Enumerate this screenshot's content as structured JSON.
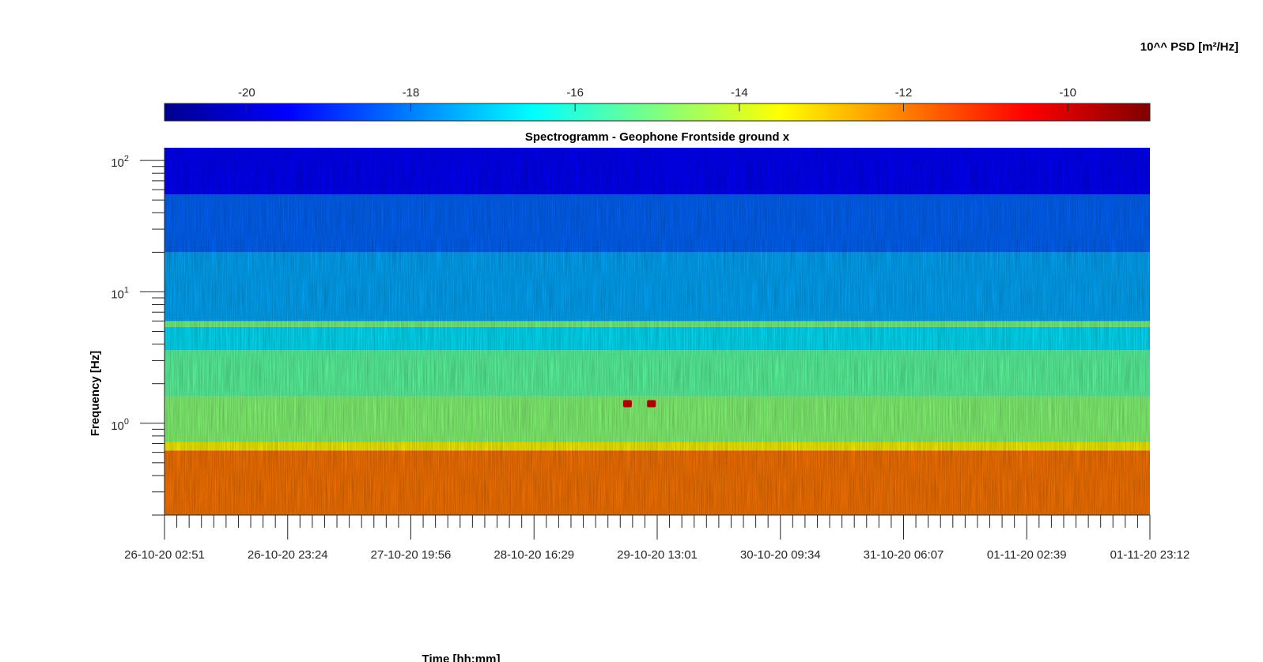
{
  "chart_data": {
    "type": "heatmap",
    "title": "Spectrogramm - Geophone Frontside ground x",
    "xlabel": "Time [hh:mm]",
    "ylabel": "Frequency [Hz]",
    "x_tick_labels": [
      "26-10-20 02:51",
      "26-10-20 23:24",
      "27-10-20 19:56",
      "28-10-20 16:29",
      "29-10-20 13:01",
      "30-10-20 09:34",
      "31-10-20 06:07",
      "01-11-20 02:39",
      "01-11-20 23:12"
    ],
    "y_scale": "log",
    "ylim": [
      0.2,
      125
    ],
    "y_ticks": [
      {
        "base": "10",
        "exp": "0",
        "value": 1
      },
      {
        "base": "10",
        "exp": "1",
        "value": 10
      },
      {
        "base": "10",
        "exp": "2",
        "value": 100
      }
    ],
    "colorbar": {
      "label": "10^^ PSD [m²/Hz]",
      "range": [
        -21,
        -9
      ],
      "ticks": [
        -20,
        -18,
        -16,
        -14,
        -12,
        -10
      ],
      "tick_labels": [
        "-20",
        "-18",
        "-16",
        "-14",
        "-12",
        "-10"
      ],
      "colormap": "jet"
    },
    "bands": [
      {
        "f_from": 0.2,
        "f_to": 0.62,
        "psd": -11.9
      },
      {
        "f_from": 0.62,
        "f_to": 0.72,
        "psd": -13.4
      },
      {
        "f_from": 0.72,
        "f_to": 1.6,
        "psd": -14.9
      },
      {
        "f_from": 1.6,
        "f_to": 3.6,
        "psd": -15.4
      },
      {
        "f_from": 3.6,
        "f_to": 5.4,
        "psd": -16.8
      },
      {
        "f_from": 5.4,
        "f_to": 6.0,
        "psd": -15.1
      },
      {
        "f_from": 6.0,
        "f_to": 20,
        "psd": -17.5
      },
      {
        "f_from": 20,
        "f_to": 55,
        "psd": -18.3
      },
      {
        "f_from": 55,
        "f_to": 125,
        "psd": -19.5
      }
    ],
    "events": [
      {
        "time": "29-10-20 08:00",
        "freq_hz": 1.4,
        "psd": -9.5
      },
      {
        "time": "29-10-20 12:00",
        "freq_hz": 1.4,
        "psd": -9.5
      }
    ]
  }
}
